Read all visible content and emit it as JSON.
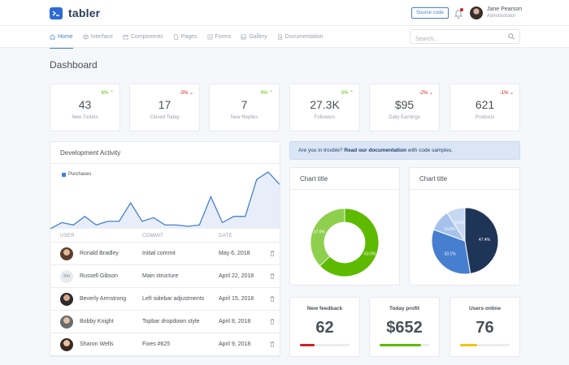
{
  "brand": {
    "name": "tabler"
  },
  "header": {
    "source_button": "Source code",
    "user": {
      "name": "Jane Pearson",
      "role": "Administrator"
    }
  },
  "nav": {
    "items": [
      {
        "label": "Home",
        "icon": "home-icon",
        "active": true
      },
      {
        "label": "Interface",
        "icon": "box-icon"
      },
      {
        "label": "Components",
        "icon": "calendar-icon"
      },
      {
        "label": "Pages",
        "icon": "file-icon"
      },
      {
        "label": "Forms",
        "icon": "check-square-icon"
      },
      {
        "label": "Gallery",
        "icon": "image-icon"
      },
      {
        "label": "Documentation",
        "icon": "file-text-icon"
      }
    ],
    "search_placeholder": "Search..."
  },
  "page": {
    "title": "Dashboard"
  },
  "stats": [
    {
      "value": "43",
      "label": "New Tickets",
      "change": "6%",
      "direction": "up"
    },
    {
      "value": "17",
      "label": "Closed Today",
      "change": "-3%",
      "direction": "down"
    },
    {
      "value": "7",
      "label": "New Replies",
      "change": "9%",
      "direction": "up"
    },
    {
      "value": "27.3K",
      "label": "Followers",
      "change": "3%",
      "direction": "up"
    },
    {
      "value": "$95",
      "label": "Daily Earnings",
      "change": "-2%",
      "direction": "down"
    },
    {
      "value": "621",
      "label": "Products",
      "change": "-1%",
      "direction": "down"
    }
  ],
  "activity": {
    "title": "Development Activity",
    "legend": "Purchases",
    "columns": [
      "USER",
      "COMMIT",
      "DATE"
    ],
    "rows": [
      {
        "user": "Ronald Bradley",
        "initials": "",
        "commit": "Initial commit",
        "date": "May 6, 2018"
      },
      {
        "user": "Russell Gibson",
        "initials": "BM",
        "commit": "Main structure",
        "date": "April 22, 2018"
      },
      {
        "user": "Beverly Armstrong",
        "initials": "",
        "commit": "Left sidebar adjustments",
        "date": "April 15, 2018"
      },
      {
        "user": "Bobby Knight",
        "initials": "",
        "commit": "Topbar dropdown style",
        "date": "April 8, 2018"
      },
      {
        "user": "Sharon Wells",
        "initials": "",
        "commit": "Fixes #625",
        "date": "April 9, 2018"
      }
    ]
  },
  "alert": {
    "prefix": "Are you in trouble? ",
    "link": "Read our documentation",
    "suffix": " with code samples."
  },
  "donut_card": {
    "title": "Chart title"
  },
  "pie_card": {
    "title": "Chart title"
  },
  "small_cards": [
    {
      "title": "New feedback",
      "value": "62",
      "progress": 0.3,
      "color": "#cd201f"
    },
    {
      "title": "Today profit",
      "value": "$652",
      "progress": 0.84,
      "color": "#5eba00"
    },
    {
      "title": "Users online",
      "value": "76",
      "progress": 0.34,
      "color": "#f1c40f"
    }
  ],
  "colors": {
    "primary": "#467fcf",
    "success": "#5eba00",
    "danger": "#cd201f",
    "warning": "#f1c40f"
  },
  "chart_data": [
    {
      "type": "area",
      "series": [
        {
          "name": "Purchases",
          "values": [
            0,
            5,
            3,
            10,
            3,
            6,
            6,
            21,
            6,
            9,
            3,
            3,
            2,
            3,
            26,
            5,
            10,
            10,
            40,
            46,
            36
          ]
        }
      ],
      "ylim": [
        0,
        50
      ]
    },
    {
      "type": "pie",
      "title": "Chart title",
      "donut": true,
      "labels": [
        "",
        ""
      ],
      "values": [
        63.0,
        37.0
      ],
      "value_labels": [
        "63.0%",
        "37.0%"
      ],
      "colors": [
        "#5eba00",
        "#8ecf4d"
      ]
    },
    {
      "type": "pie",
      "title": "Chart title",
      "labels": [
        "",
        "",
        "",
        ""
      ],
      "values": [
        47.4,
        33.1,
        10.5,
        9.0
      ],
      "value_labels": [
        "47.4%",
        "33.1%",
        "10.5%",
        "9.0%"
      ],
      "colors": [
        "#1e3557",
        "#467fcf",
        "#a6c2ec",
        "#c7d8f3"
      ]
    }
  ]
}
